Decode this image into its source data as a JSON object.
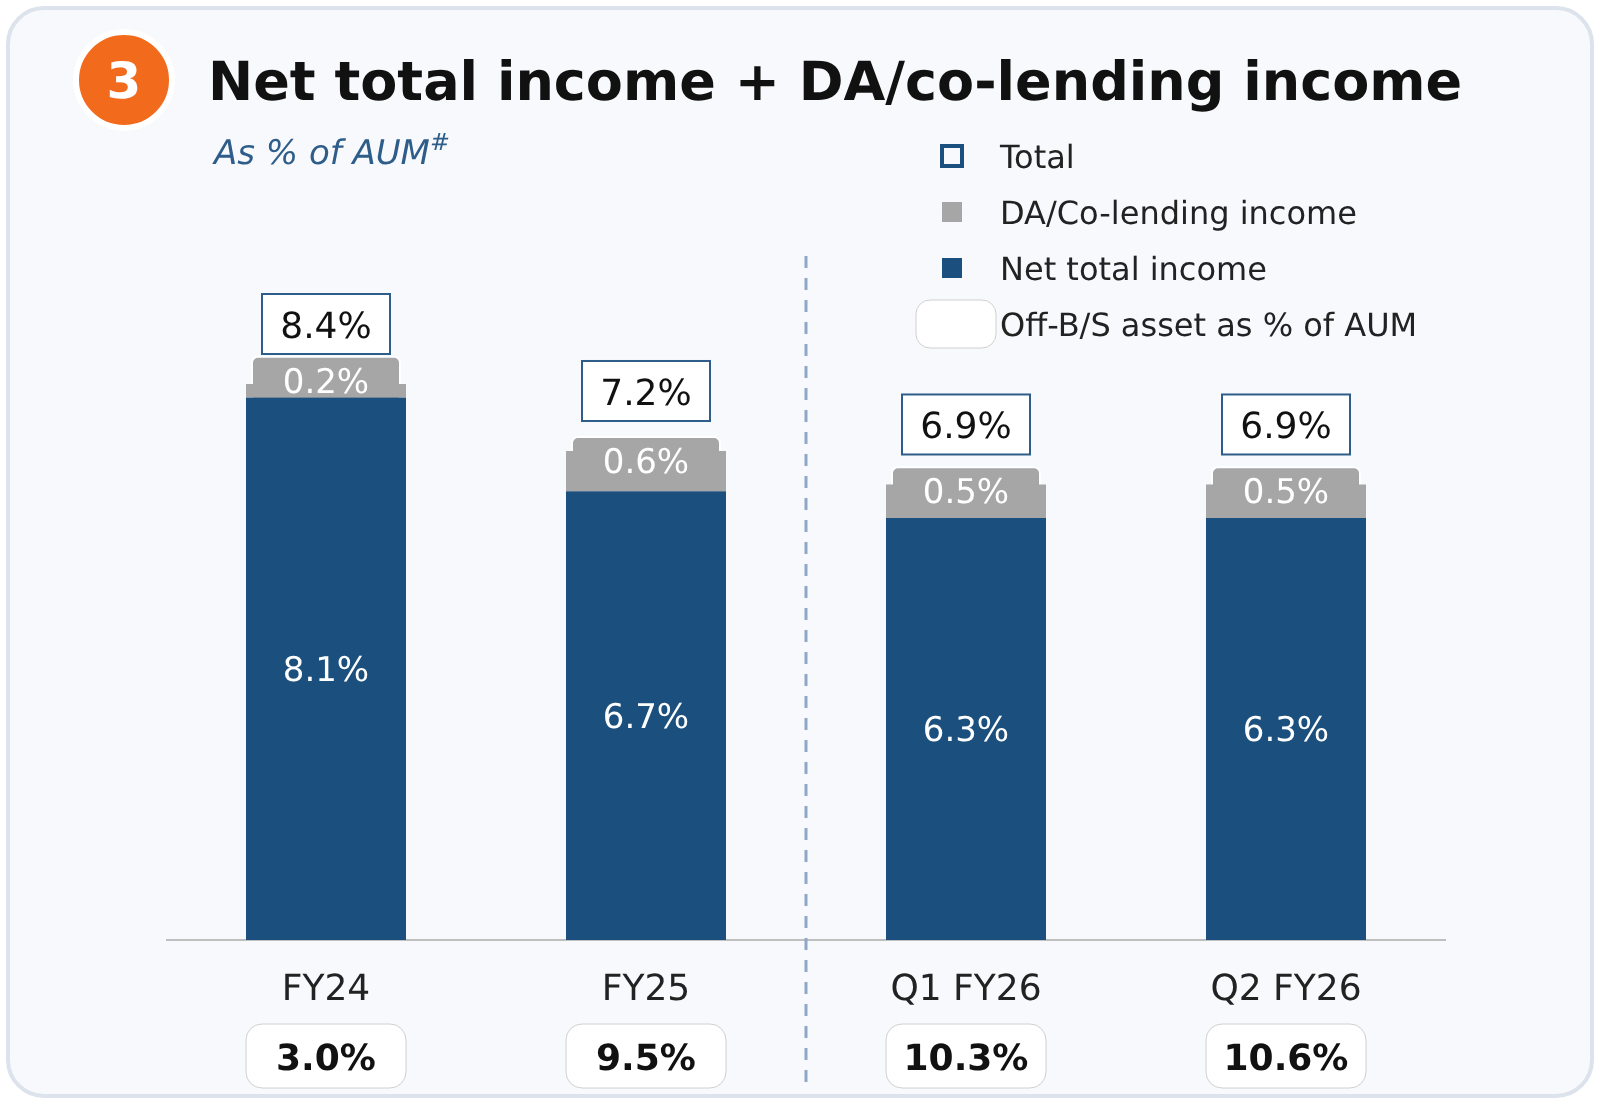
{
  "chart_data": {
    "type": "bar",
    "title": "Net total income + DA/co-lending income",
    "subtitle": "As % of AUM$^{#}$",
    "stacked": true,
    "legend": "top right",
    "categories": [
      "FY24",
      "FY25",
      "Q1 FY26",
      "Q2 FY26"
    ],
    "series": [
      {
        "name": "Net total income",
        "color": "#1b4f7e",
        "values": [
          8.1,
          6.7,
          6.3,
          6.3
        ],
        "value_labels": [
          "8.1%",
          "6.7%",
          "6.3%",
          "6.3%"
        ]
      },
      {
        "name": "DA/Co-lending income",
        "color": "#a6a6a6",
        "values": [
          0.2,
          0.6,
          0.5,
          0.5
        ],
        "value_labels": [
          "0.2%",
          "0.6%",
          "0.5%",
          "0.5%"
        ]
      }
    ],
    "totals": [
      "8.4%",
      "7.2%",
      "6.9%",
      "6.9%"
    ],
    "annotations": [
      "3",
      "Total",
      "Off-B/S asset as % of AUM",
      "3.0%",
      "9.5%",
      "10.3%",
      "10.6%"
    ]
  }
}
